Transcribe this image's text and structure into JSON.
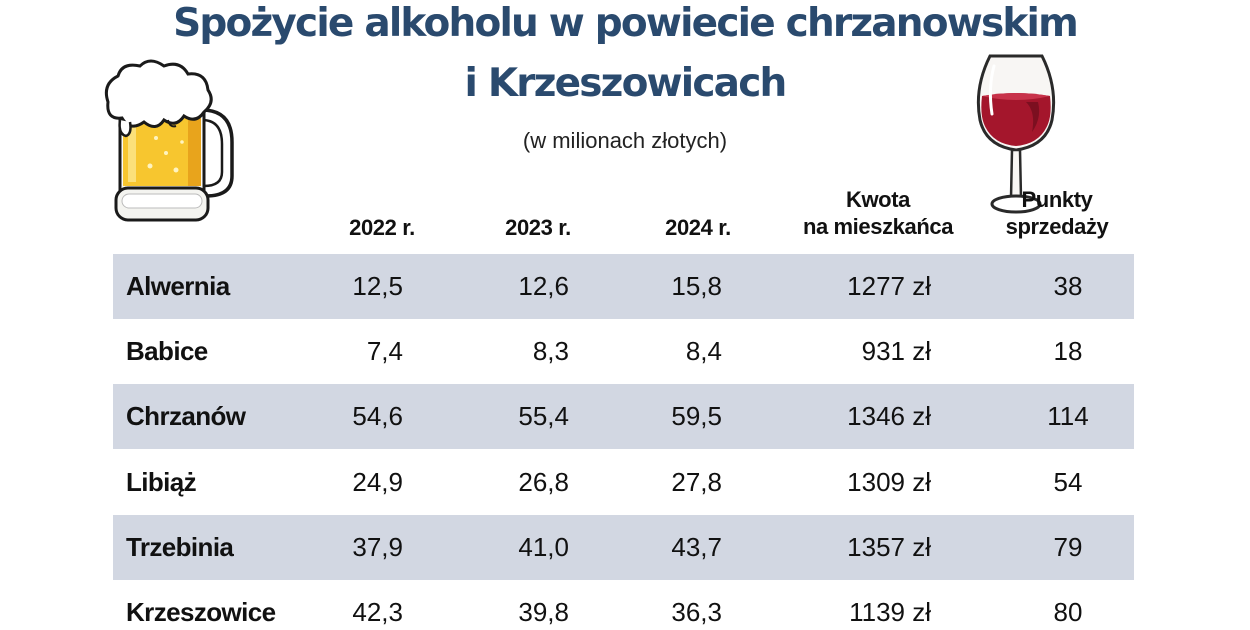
{
  "title": {
    "line1": "Spożycie alkoholu w powiecie chrzanowskim",
    "line2": "i Krzeszowicach"
  },
  "subtitle": "(w milionach złotych)",
  "columns": {
    "y2022": "2022 r.",
    "y2023": "2023 r.",
    "y2024": "2024 r.",
    "kwota_l1": "Kwota",
    "kwota_l2": "na mieszkańca",
    "punkty_l1": "Punkty",
    "punkty_l2": "sprzedaży"
  },
  "rows": [
    {
      "name": "Alwernia",
      "y2022": "12,5",
      "y2023": "12,6",
      "y2024": "15,8",
      "kwota": "1277 zł",
      "punkty": "38"
    },
    {
      "name": "Babice",
      "y2022": "7,4",
      "y2023": "8,3",
      "y2024": "8,4",
      "kwota": "931 zł",
      "punkty": "18"
    },
    {
      "name": "Chrzanów",
      "y2022": "54,6",
      "y2023": "55,4",
      "y2024": "59,5",
      "kwota": "1346 zł",
      "punkty": "114"
    },
    {
      "name": "Libiąż",
      "y2022": "24,9",
      "y2023": "26,8",
      "y2024": "27,8",
      "kwota": "1309 zł",
      "punkty": "54"
    },
    {
      "name": "Trzebinia",
      "y2022": "37,9",
      "y2023": "41,0",
      "y2024": "43,7",
      "kwota": "1357 zł",
      "punkty": "79"
    },
    {
      "name": "Krzeszowice",
      "y2022": "42,3",
      "y2023": "39,8",
      "y2024": "36,3",
      "kwota": "1139 zł",
      "punkty": "80"
    }
  ],
  "colors": {
    "title": "#2a4a6e",
    "row_shade": "#d2d7e2",
    "beer": "#f7c62f",
    "wine": "#a4162c"
  },
  "icons": {
    "beer": "beer-mug-icon",
    "wine": "wine-glass-icon"
  }
}
